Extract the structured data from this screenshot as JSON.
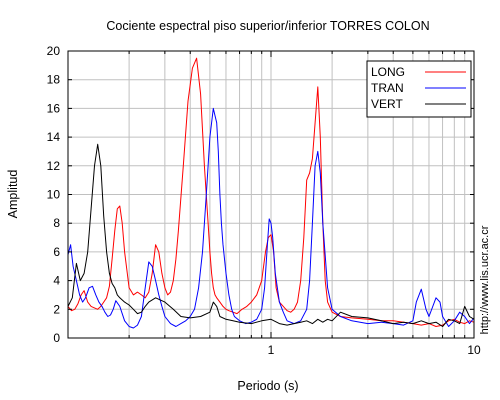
{
  "chart_data": {
    "type": "line",
    "title": "Cociente espectral piso superior/inferior  TORRES COLON",
    "xlabel": "Periodo (s)",
    "ylabel": "Amplitud",
    "x_scale": "log",
    "xlim": [
      0.1,
      10
    ],
    "ylim": [
      0,
      20
    ],
    "y_ticks": [
      "0",
      "2",
      "4",
      "6",
      "8",
      "10",
      "12",
      "14",
      "16",
      "18",
      "20"
    ],
    "x_ticks": [
      "1",
      "10"
    ],
    "grid": true,
    "legend_position": "top-right",
    "watermark": "http://www.lis.ucr.ac.cr",
    "series": [
      {
        "name": "LONG",
        "color": "#ff0000",
        "x": [
          0.1,
          0.104,
          0.108,
          0.112,
          0.116,
          0.12,
          0.125,
          0.13,
          0.135,
          0.14,
          0.145,
          0.15,
          0.155,
          0.16,
          0.165,
          0.17,
          0.175,
          0.18,
          0.185,
          0.19,
          0.2,
          0.21,
          0.22,
          0.23,
          0.24,
          0.25,
          0.26,
          0.27,
          0.28,
          0.29,
          0.3,
          0.31,
          0.32,
          0.33,
          0.34,
          0.35,
          0.37,
          0.39,
          0.41,
          0.43,
          0.45,
          0.47,
          0.49,
          0.5,
          0.51,
          0.52,
          0.53,
          0.54,
          0.56,
          0.58,
          0.6,
          0.62,
          0.65,
          0.68,
          0.72,
          0.76,
          0.8,
          0.85,
          0.9,
          0.94,
          0.97,
          1.0,
          1.03,
          1.06,
          1.1,
          1.15,
          1.2,
          1.25,
          1.3,
          1.35,
          1.4,
          1.45,
          1.5,
          1.55,
          1.6,
          1.65,
          1.7,
          1.75,
          1.8,
          1.85,
          1.9,
          2.0,
          2.2,
          2.5,
          3.0,
          3.5,
          4.0,
          4.5,
          5.0,
          5.5,
          6.0,
          6.5,
          7.0,
          7.5,
          8.0,
          8.5,
          9.0,
          9.5,
          10.0
        ],
        "y": [
          2.2,
          1.9,
          2.0,
          2.4,
          3.0,
          3.3,
          2.5,
          2.2,
          2.1,
          2.0,
          2.2,
          2.5,
          2.8,
          3.6,
          5.5,
          7.5,
          9.0,
          9.2,
          8.0,
          6.0,
          3.5,
          3.0,
          3.2,
          3.0,
          2.8,
          3.2,
          4.5,
          6.5,
          6.0,
          4.5,
          3.5,
          3.0,
          3.2,
          4.0,
          5.5,
          7.5,
          12.0,
          16.5,
          18.8,
          19.5,
          17.0,
          12.0,
          8.0,
          6.0,
          4.5,
          3.5,
          3.0,
          2.8,
          2.5,
          2.2,
          2.0,
          1.9,
          1.8,
          1.7,
          2.0,
          2.2,
          2.5,
          3.0,
          4.0,
          6.0,
          7.0,
          7.2,
          6.0,
          3.5,
          2.5,
          2.2,
          1.9,
          1.8,
          2.0,
          2.5,
          4.0,
          7.0,
          11.0,
          11.5,
          12.5,
          15.0,
          17.5,
          14.0,
          8.0,
          4.0,
          2.5,
          1.8,
          1.5,
          1.4,
          1.3,
          1.2,
          1.2,
          1.1,
          1.0,
          0.9,
          1.0,
          0.8,
          0.9,
          1.2,
          1.3,
          1.1,
          1.0,
          1.2,
          1.1
        ]
      },
      {
        "name": "TRAN",
        "color": "#0000ff",
        "x": [
          0.1,
          0.103,
          0.106,
          0.11,
          0.114,
          0.118,
          0.122,
          0.127,
          0.132,
          0.137,
          0.142,
          0.147,
          0.152,
          0.157,
          0.162,
          0.167,
          0.172,
          0.18,
          0.19,
          0.2,
          0.21,
          0.22,
          0.23,
          0.24,
          0.25,
          0.26,
          0.27,
          0.28,
          0.29,
          0.3,
          0.32,
          0.34,
          0.36,
          0.38,
          0.4,
          0.42,
          0.44,
          0.46,
          0.48,
          0.5,
          0.52,
          0.53,
          0.54,
          0.55,
          0.56,
          0.57,
          0.58,
          0.6,
          0.62,
          0.64,
          0.66,
          0.7,
          0.75,
          0.8,
          0.85,
          0.9,
          0.93,
          0.96,
          0.98,
          1.0,
          1.02,
          1.05,
          1.1,
          1.15,
          1.2,
          1.3,
          1.4,
          1.5,
          1.55,
          1.6,
          1.65,
          1.7,
          1.75,
          1.8,
          1.9,
          2.0,
          2.2,
          2.5,
          3.0,
          3.5,
          4.0,
          4.5,
          5.0,
          5.2,
          5.5,
          5.8,
          6.0,
          6.5,
          6.8,
          7.0,
          7.5,
          8.0,
          8.5,
          9.0,
          9.5,
          10.0
        ],
        "y": [
          5.8,
          6.5,
          5.0,
          4.0,
          3.0,
          2.5,
          2.8,
          3.5,
          3.6,
          3.0,
          2.5,
          2.2,
          1.8,
          1.5,
          1.6,
          2.0,
          2.6,
          2.2,
          1.2,
          0.8,
          0.7,
          0.9,
          1.5,
          3.5,
          5.3,
          5.0,
          4.0,
          3.0,
          2.2,
          1.5,
          1.0,
          0.8,
          1.0,
          1.2,
          1.5,
          2.0,
          3.5,
          6.0,
          10.0,
          14.0,
          16.0,
          15.5,
          15.0,
          13.0,
          10.0,
          8.0,
          6.5,
          4.5,
          3.0,
          2.0,
          1.5,
          1.2,
          1.0,
          1.1,
          1.3,
          2.0,
          3.5,
          6.5,
          8.3,
          8.0,
          7.0,
          4.5,
          2.5,
          1.8,
          1.2,
          1.0,
          1.2,
          2.0,
          4.0,
          8.0,
          12.0,
          13.0,
          11.5,
          8.0,
          3.5,
          2.0,
          1.5,
          1.2,
          1.0,
          1.1,
          1.0,
          0.9,
          1.2,
          2.5,
          3.4,
          2.0,
          1.5,
          2.8,
          2.5,
          1.5,
          0.8,
          1.2,
          1.8,
          1.5,
          1.0,
          1.4
        ]
      },
      {
        "name": "VERT",
        "color": "#000000",
        "x": [
          0.1,
          0.105,
          0.11,
          0.115,
          0.12,
          0.125,
          0.13,
          0.135,
          0.14,
          0.145,
          0.15,
          0.155,
          0.16,
          0.165,
          0.17,
          0.175,
          0.18,
          0.19,
          0.2,
          0.21,
          0.22,
          0.23,
          0.24,
          0.25,
          0.27,
          0.3,
          0.33,
          0.36,
          0.4,
          0.45,
          0.5,
          0.52,
          0.54,
          0.56,
          0.6,
          0.65,
          0.7,
          0.8,
          0.9,
          1.0,
          1.1,
          1.2,
          1.3,
          1.4,
          1.5,
          1.6,
          1.7,
          1.8,
          1.9,
          2.0,
          2.2,
          2.5,
          3.0,
          3.5,
          4.0,
          4.5,
          5.0,
          5.5,
          6.0,
          6.5,
          7.0,
          7.5,
          8.0,
          8.5,
          9.0,
          9.5,
          10.0
        ],
        "y": [
          2.2,
          2.8,
          5.2,
          4.0,
          4.5,
          6.0,
          9.0,
          12.0,
          13.5,
          12.0,
          8.5,
          6.0,
          4.5,
          3.8,
          3.5,
          3.0,
          2.8,
          2.5,
          2.3,
          2.0,
          1.7,
          1.8,
          2.2,
          2.5,
          2.8,
          2.5,
          2.0,
          1.5,
          1.4,
          1.5,
          1.8,
          2.5,
          2.2,
          1.5,
          1.3,
          1.2,
          1.1,
          1.0,
          1.2,
          1.3,
          1.0,
          0.9,
          1.0,
          1.1,
          1.2,
          1.0,
          1.3,
          1.1,
          1.3,
          1.2,
          1.8,
          1.5,
          1.4,
          1.2,
          1.0,
          1.1,
          1.0,
          1.2,
          1.0,
          1.1,
          0.8,
          1.3,
          1.2,
          1.0,
          2.2,
          1.5,
          1.3
        ]
      }
    ]
  }
}
